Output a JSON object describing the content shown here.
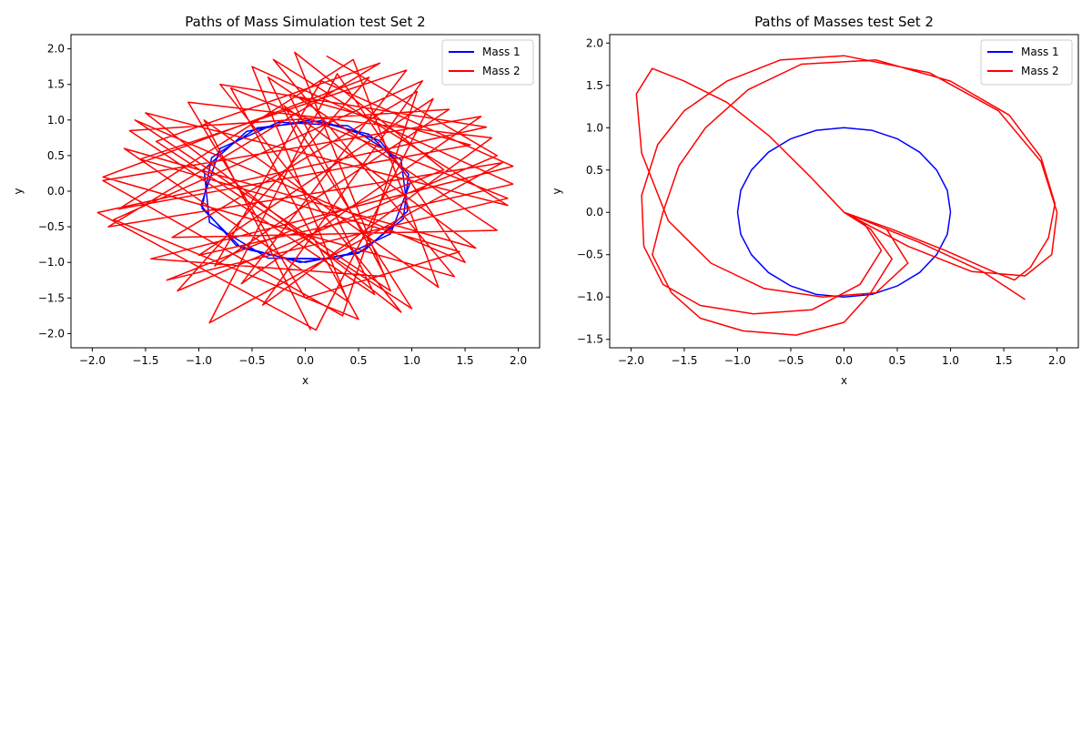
{
  "chart_data": [
    {
      "type": "line",
      "title": "Paths of Mass Simulation test Set 2",
      "xlabel": "x",
      "ylabel": "y",
      "xlim": [
        -2.2,
        2.2
      ],
      "ylim": [
        -2.2,
        2.2
      ],
      "xticks": [
        "−2.0",
        "−1.5",
        "−1.0",
        "−0.5",
        "0.0",
        "0.5",
        "1.0",
        "1.5",
        "2.0"
      ],
      "yticks": [
        "−2.0",
        "−1.5",
        "−1.0",
        "−0.5",
        "0.0",
        "0.5",
        "1.0",
        "1.5",
        "2.0"
      ],
      "xtick_values": [
        -2.0,
        -1.5,
        -1.0,
        -0.5,
        0.0,
        0.5,
        1.0,
        1.5,
        2.0
      ],
      "ytick_values": [
        -2.0,
        -1.5,
        -1.0,
        -0.5,
        0.0,
        0.5,
        1.0,
        1.5,
        2.0
      ],
      "legend": "top-right",
      "grid": false,
      "series": [
        {
          "name": "Mass 1",
          "color": "#0000ff",
          "x": [
            0.0,
            0.55,
            0.96,
            0.9,
            0.4,
            -0.25,
            -0.8,
            -0.98,
            -0.65,
            -0.05,
            0.5,
            0.92,
            0.97,
            0.6,
            0.05,
            -0.55,
            -0.95,
            -0.9,
            -0.35,
            0.3,
            0.8,
            0.99,
            0.7,
            0.15,
            -0.45,
            -0.88,
            -0.97,
            -0.6,
            0.0
          ],
          "y": [
            -1.0,
            -0.84,
            -0.28,
            0.44,
            0.92,
            0.97,
            0.6,
            -0.2,
            -0.76,
            -1.0,
            -0.87,
            -0.39,
            0.24,
            0.8,
            1.0,
            0.84,
            0.31,
            -0.44,
            -0.94,
            -0.95,
            -0.6,
            0.14,
            0.71,
            0.99,
            0.89,
            0.47,
            -0.24,
            -0.8,
            -1.0
          ]
        },
        {
          "name": "Mass 2",
          "color": "#ff0000",
          "x": [
            0.2,
            1.8,
            -1.2,
            0.6,
            -1.9,
            1.4,
            -0.3,
            1.9,
            -1.5,
            0.9,
            -0.8,
            1.7,
            -1.95,
            0.1,
            1.2,
            -1.0,
            1.95,
            -0.5,
            0.4,
            -1.7,
            1.6,
            -0.2,
            1.0,
            -1.4,
            0.7,
            -1.85,
            1.85,
            -0.9,
            0.3,
            1.5,
            -1.6,
            0.8,
            -0.1,
            1.3,
            -1.3,
            1.9,
            -0.7,
            0.5,
            -1.8,
            1.1,
            -0.4,
            1.75,
            -1.1,
            0.0,
            1.45,
            -1.55,
            0.95,
            -0.6,
            1.65,
            -1.9,
            0.35,
            1.05,
            -1.25,
            1.8,
            -0.35,
            0.65,
            -1.65,
            1.35,
            -0.85,
            0.15,
            1.95,
            -1.45,
            0.75,
            -0.15,
            1.55,
            -1.75,
            0.45,
            1.25,
            -0.95,
            0.05
          ],
          "y": [
            1.9,
            0.5,
            -1.4,
            1.6,
            0.2,
            -1.2,
            1.85,
            -0.2,
            1.1,
            -1.7,
            1.5,
            0.9,
            -0.3,
            -1.95,
            1.3,
            -0.9,
            0.1,
            1.75,
            -1.55,
            0.6,
            -0.8,
            1.2,
            -1.65,
            0.7,
            1.8,
            -0.5,
            0.4,
            -1.85,
            1.65,
            -1.0,
            1.0,
            -1.4,
            1.95,
            0.3,
            -1.25,
            -0.1,
            1.45,
            -1.8,
            -0.4,
            1.55,
            -1.6,
            0.75,
            1.25,
            -1.5,
            -0.85,
            0.45,
            1.7,
            -1.3,
            1.05,
            0.15,
            -1.75,
            1.4,
            -0.65,
            -0.55,
            1.6,
            -1.45,
            0.85,
            1.15,
            -1.05,
            1.55,
            0.35,
            -0.95,
            -1.2,
            1.35,
            0.65,
            -0.25,
            1.85,
            -1.35,
            1.0,
            -1.95
          ]
        }
      ]
    },
    {
      "type": "line",
      "title": "Paths of Masses test Set 2",
      "xlabel": "x",
      "ylabel": "y",
      "xlim": [
        -2.2,
        2.2
      ],
      "ylim": [
        -1.6,
        2.1
      ],
      "xticks": [
        "−2.0",
        "−1.5",
        "−1.0",
        "−0.5",
        "0.0",
        "0.5",
        "1.0",
        "1.5",
        "2.0"
      ],
      "yticks": [
        "−1.5",
        "−1.0",
        "−0.5",
        "0.0",
        "0.5",
        "1.0",
        "1.5",
        "2.0"
      ],
      "xtick_values": [
        -2.0,
        -1.5,
        -1.0,
        -0.5,
        0.0,
        0.5,
        1.0,
        1.5,
        2.0
      ],
      "ytick_values": [
        -1.5,
        -1.0,
        -0.5,
        0.0,
        0.5,
        1.0,
        1.5,
        2.0
      ],
      "legend": "top-right",
      "grid": false,
      "series": [
        {
          "name": "Mass 1",
          "color": "#0000ff",
          "x": [
            1.0,
            0.97,
            0.87,
            0.71,
            0.5,
            0.26,
            0.0,
            -0.26,
            -0.5,
            -0.71,
            -0.87,
            -0.97,
            -1.0,
            -0.97,
            -0.87,
            -0.71,
            -0.5,
            -0.26,
            0.0,
            0.26,
            0.5,
            0.71,
            0.87,
            0.97,
            1.0
          ],
          "y": [
            0.0,
            0.26,
            0.5,
            0.71,
            0.87,
            0.97,
            1.0,
            0.97,
            0.87,
            0.71,
            0.5,
            0.26,
            0.0,
            -0.26,
            -0.5,
            -0.71,
            -0.87,
            -0.97,
            -1.0,
            -0.97,
            -0.87,
            -0.71,
            -0.5,
            -0.26,
            0.0
          ]
        },
        {
          "name": "Mass 2",
          "color": "#ff0000",
          "x": [
            0.0,
            -0.3,
            -0.7,
            -1.1,
            -1.5,
            -1.8,
            -1.95,
            -1.9,
            -1.65,
            -1.25,
            -0.75,
            -0.2,
            0.3,
            0.6,
            0.4,
            0.0,
            0.6,
            1.2,
            1.7,
            1.95,
            2.0,
            1.85,
            1.45,
            0.8,
            0.0,
            -0.6,
            -1.1,
            -1.5,
            -1.75,
            -1.9,
            -1.88,
            -1.7,
            -1.35,
            -0.85,
            -0.3,
            0.15,
            0.35,
            0.2,
            0.0,
            0.45,
            0.95,
            1.4,
            1.6,
            1.75,
            1.92,
            1.98,
            1.85,
            1.55,
            1.0,
            0.3,
            -0.4,
            -0.9,
            -1.3,
            -1.55,
            -1.7,
            -1.8,
            -1.62,
            -1.35,
            -0.95,
            -0.45,
            0.0,
            0.25,
            0.45,
            0.25,
            0.0,
            0.7,
            1.3,
            1.7
          ],
          "y": [
            0.0,
            0.4,
            0.9,
            1.3,
            1.55,
            1.7,
            1.4,
            0.7,
            -0.1,
            -0.6,
            -0.9,
            -1.0,
            -0.95,
            -0.6,
            -0.2,
            0.0,
            -0.4,
            -0.7,
            -0.75,
            -0.5,
            0.0,
            0.6,
            1.2,
            1.65,
            1.85,
            1.8,
            1.55,
            1.2,
            0.8,
            0.2,
            -0.4,
            -0.85,
            -1.1,
            -1.2,
            -1.15,
            -0.85,
            -0.45,
            -0.15,
            0.0,
            -0.2,
            -0.45,
            -0.7,
            -0.8,
            -0.65,
            -0.3,
            0.1,
            0.65,
            1.15,
            1.55,
            1.8,
            1.75,
            1.45,
            1.0,
            0.55,
            0.0,
            -0.5,
            -0.95,
            -1.25,
            -1.4,
            -1.45,
            -1.3,
            -0.95,
            -0.55,
            -0.2,
            0.0,
            -0.35,
            -0.7,
            -1.03
          ]
        }
      ]
    }
  ]
}
